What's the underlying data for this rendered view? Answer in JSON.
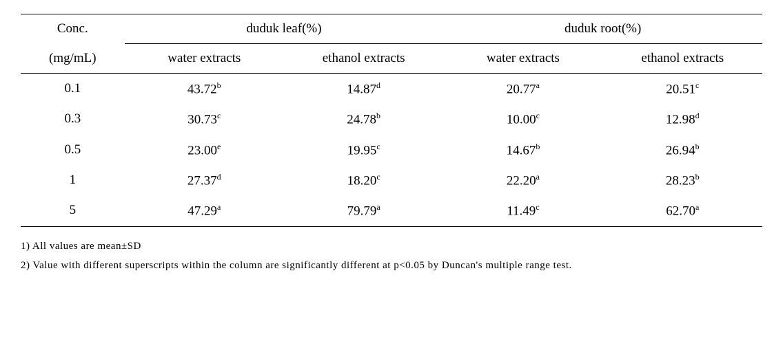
{
  "table": {
    "header": {
      "conc_label_line1": "Conc.",
      "conc_label_line2": "(mg/mL)",
      "group1": "duduk leaf(%)",
      "group2": "duduk root(%)",
      "sub1": "water extracts",
      "sub2": "ethanol extracts",
      "sub3": "water extracts",
      "sub4": "ethanol extracts"
    },
    "rows": [
      {
        "conc": "0.1",
        "c1_val": "43.72",
        "c1_sup": "b",
        "c2_val": "14.87",
        "c2_sup": "d",
        "c3_val": "20.77",
        "c3_sup": "a",
        "c4_val": "20.51",
        "c4_sup": "c"
      },
      {
        "conc": "0.3",
        "c1_val": "30.73",
        "c1_sup": "c",
        "c2_val": "24.78",
        "c2_sup": "b",
        "c3_val": "10.00",
        "c3_sup": "c",
        "c4_val": "12.98",
        "c4_sup": "d"
      },
      {
        "conc": "0.5",
        "c1_val": "23.00",
        "c1_sup": "e",
        "c2_val": "19.95",
        "c2_sup": "c",
        "c3_val": "14.67",
        "c3_sup": "b",
        "c4_val": "26.94",
        "c4_sup": "b"
      },
      {
        "conc": "1",
        "c1_val": "27.37",
        "c1_sup": "d",
        "c2_val": "18.20",
        "c2_sup": "c",
        "c3_val": "22.20",
        "c3_sup": "a",
        "c4_val": "28.23",
        "c4_sup": "b"
      },
      {
        "conc": "5",
        "c1_val": "47.29",
        "c1_sup": "a",
        "c2_val": "79.79",
        "c2_sup": "a",
        "c3_val": "11.49",
        "c3_sup": "c",
        "c4_val": "62.70",
        "c4_sup": "a"
      }
    ]
  },
  "footnotes": {
    "note1": "1) All values are mean±SD",
    "note2": "2) Value with different superscripts within the column are significantly different at p<0.05 by Duncan's multiple range test."
  },
  "style": {
    "font_color": "#000000",
    "background": "#ffffff",
    "border_color": "#000000",
    "header_fontsize": 19,
    "data_fontsize": 19,
    "sup_fontsize": 12,
    "footnote_fontsize": 15
  }
}
